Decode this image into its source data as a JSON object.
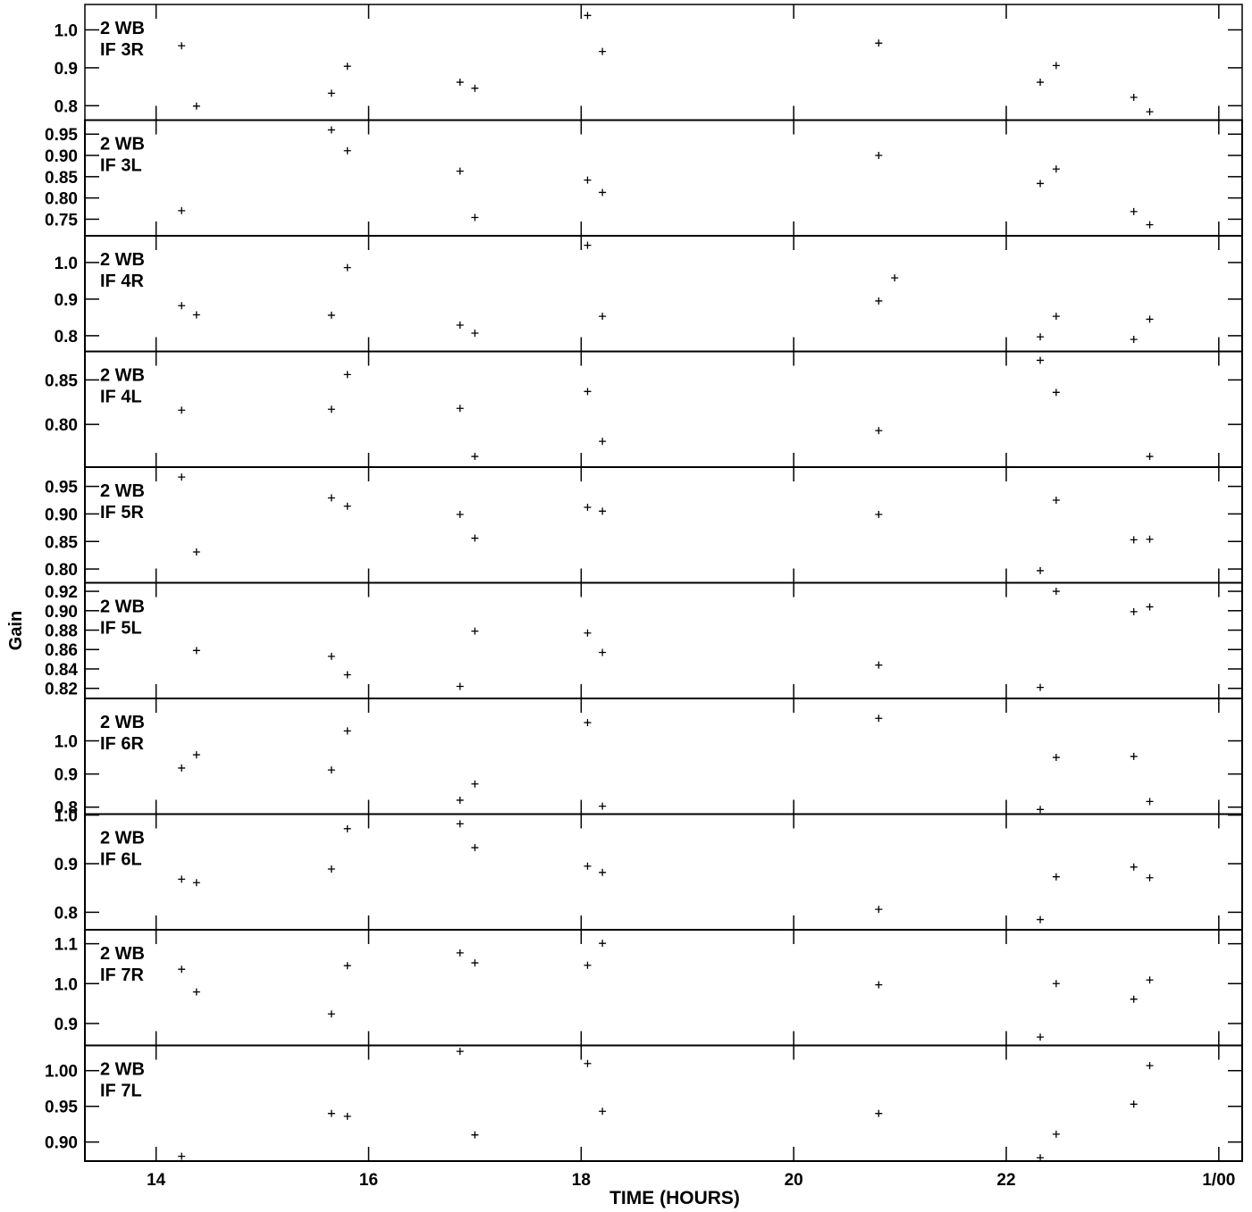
{
  "chart_data": {
    "type": "scatter",
    "ylabel": "Gain",
    "xlabel": "TIME (HOURS)",
    "x_unit": "hours",
    "xlim": [
      13.33,
      24.22
    ],
    "x_ticks": [
      {
        "value": 14,
        "label": "14"
      },
      {
        "value": 16,
        "label": "16"
      },
      {
        "value": 18,
        "label": "18"
      },
      {
        "value": 20,
        "label": "20"
      },
      {
        "value": 22,
        "label": "22"
      },
      {
        "value": 24,
        "label": "1/00"
      }
    ],
    "marker": "+",
    "panels": [
      {
        "label_line1": "2 WB",
        "label_line2": "IF 3R",
        "ylim": [
          0.762,
          1.067
        ],
        "yticks": [
          {
            "v": 0.8,
            "t": "0.8"
          },
          {
            "v": 0.9,
            "t": "0.9"
          },
          {
            "v": 1.0,
            "t": "1.0"
          }
        ],
        "points": [
          [
            14.24,
            0.958
          ],
          [
            14.38,
            0.799
          ],
          [
            15.65,
            0.833
          ],
          [
            15.8,
            0.904
          ],
          [
            16.86,
            0.862
          ],
          [
            17.0,
            0.846
          ],
          [
            18.06,
            1.038
          ],
          [
            18.2,
            0.943
          ],
          [
            20.8,
            0.965
          ],
          [
            22.32,
            0.862
          ],
          [
            22.47,
            0.906
          ],
          [
            23.2,
            0.822
          ],
          [
            23.35,
            0.784
          ]
        ]
      },
      {
        "label_line1": "2 WB",
        "label_line2": "IF 3L",
        "ylim": [
          0.711,
          0.983
        ],
        "yticks": [
          {
            "v": 0.75,
            "t": "0.75"
          },
          {
            "v": 0.8,
            "t": "0.80"
          },
          {
            "v": 0.85,
            "t": "0.85"
          },
          {
            "v": 0.9,
            "t": "0.90"
          },
          {
            "v": 0.95,
            "t": "0.95"
          }
        ],
        "points": [
          [
            14.24,
            0.77
          ],
          [
            15.65,
            0.96
          ],
          [
            15.8,
            0.911
          ],
          [
            16.86,
            0.863
          ],
          [
            17.0,
            0.754
          ],
          [
            18.06,
            0.842
          ],
          [
            18.2,
            0.813
          ],
          [
            20.8,
            0.9
          ],
          [
            22.32,
            0.834
          ],
          [
            22.47,
            0.868
          ],
          [
            23.2,
            0.768
          ],
          [
            23.35,
            0.737
          ]
        ]
      },
      {
        "label_line1": "2 WB",
        "label_line2": "IF 4R",
        "ylim": [
          0.757,
          1.073
        ],
        "yticks": [
          {
            "v": 0.8,
            "t": "0.8"
          },
          {
            "v": 0.9,
            "t": "0.9"
          },
          {
            "v": 1.0,
            "t": "1.0"
          }
        ],
        "points": [
          [
            14.24,
            0.882
          ],
          [
            14.38,
            0.857
          ],
          [
            15.65,
            0.856
          ],
          [
            15.8,
            0.986
          ],
          [
            16.86,
            0.829
          ],
          [
            17.0,
            0.807
          ],
          [
            18.06,
            1.047
          ],
          [
            18.2,
            0.853
          ],
          [
            20.8,
            0.895
          ],
          [
            20.95,
            0.958
          ],
          [
            22.32,
            0.797
          ],
          [
            22.47,
            0.853
          ],
          [
            23.2,
            0.79
          ],
          [
            23.35,
            0.845
          ]
        ]
      },
      {
        "label_line1": "2 WB",
        "label_line2": "IF 4L",
        "ylim": [
          0.752,
          0.882
        ],
        "yticks": [
          {
            "v": 0.8,
            "t": "0.80"
          },
          {
            "v": 0.85,
            "t": "0.85"
          }
        ],
        "points": [
          [
            14.24,
            0.816
          ],
          [
            15.65,
            0.817
          ],
          [
            15.8,
            0.856
          ],
          [
            16.86,
            0.818
          ],
          [
            17.0,
            0.764
          ],
          [
            18.06,
            0.837
          ],
          [
            18.2,
            0.781
          ],
          [
            20.8,
            0.793
          ],
          [
            22.32,
            0.872
          ],
          [
            22.47,
            0.836
          ],
          [
            23.35,
            0.764
          ]
        ]
      },
      {
        "label_line1": "2 WB",
        "label_line2": "IF 5R",
        "ylim": [
          0.775,
          0.985
        ],
        "yticks": [
          {
            "v": 0.8,
            "t": "0.80"
          },
          {
            "v": 0.85,
            "t": "0.85"
          },
          {
            "v": 0.9,
            "t": "0.90"
          },
          {
            "v": 0.95,
            "t": "0.95"
          }
        ],
        "points": [
          [
            14.24,
            0.967
          ],
          [
            14.38,
            0.831
          ],
          [
            15.65,
            0.929
          ],
          [
            15.8,
            0.914
          ],
          [
            16.86,
            0.899
          ],
          [
            17.0,
            0.856
          ],
          [
            18.06,
            0.912
          ],
          [
            18.2,
            0.905
          ],
          [
            20.8,
            0.899
          ],
          [
            22.32,
            0.797
          ],
          [
            22.47,
            0.925
          ],
          [
            23.2,
            0.853
          ],
          [
            23.35,
            0.854
          ]
        ]
      },
      {
        "label_line1": "2 WB",
        "label_line2": "IF 5L",
        "ylim": [
          0.8096,
          0.9288
        ],
        "yticks": [
          {
            "v": 0.82,
            "t": "0.82"
          },
          {
            "v": 0.84,
            "t": "0.84"
          },
          {
            "v": 0.86,
            "t": "0.86"
          },
          {
            "v": 0.88,
            "t": "0.88"
          },
          {
            "v": 0.9,
            "t": "0.90"
          },
          {
            "v": 0.92,
            "t": "0.92"
          }
        ],
        "points": [
          [
            14.38,
            0.859
          ],
          [
            15.65,
            0.853
          ],
          [
            15.8,
            0.834
          ],
          [
            16.86,
            0.822
          ],
          [
            17.0,
            0.879
          ],
          [
            18.06,
            0.877
          ],
          [
            18.2,
            0.857
          ],
          [
            20.8,
            0.844
          ],
          [
            22.32,
            0.821
          ],
          [
            22.47,
            0.92
          ],
          [
            23.2,
            0.899
          ],
          [
            23.35,
            0.904
          ]
        ]
      },
      {
        "label_line1": "2 WB",
        "label_line2": "IF 6R",
        "ylim": [
          0.779,
          1.128
        ],
        "yticks": [
          {
            "v": 0.8,
            "t": "0.8"
          },
          {
            "v": 0.9,
            "t": "0.9"
          },
          {
            "v": 1.0,
            "t": "1.0"
          }
        ],
        "points": [
          [
            14.24,
            0.918
          ],
          [
            14.38,
            0.958
          ],
          [
            15.65,
            0.912
          ],
          [
            15.8,
            1.03
          ],
          [
            16.86,
            0.821
          ],
          [
            17.0,
            0.87
          ],
          [
            18.06,
            1.055
          ],
          [
            18.2,
            0.803
          ],
          [
            20.8,
            1.068
          ],
          [
            22.32,
            0.793
          ],
          [
            22.47,
            0.95
          ],
          [
            23.2,
            0.953
          ],
          [
            23.35,
            0.817
          ]
        ]
      },
      {
        "label_line1": "2 WB",
        "label_line2": "IF 6L",
        "ylim": [
          0.764,
          1.002
        ],
        "yticks": [
          {
            "v": 0.8,
            "t": "0.8"
          },
          {
            "v": 0.9,
            "t": "0.9"
          },
          {
            "v": 1.0,
            "t": "1.0"
          }
        ],
        "points": [
          [
            14.24,
            0.868
          ],
          [
            14.38,
            0.861
          ],
          [
            15.65,
            0.889
          ],
          [
            15.8,
            0.972
          ],
          [
            16.86,
            0.982
          ],
          [
            17.0,
            0.933
          ],
          [
            18.06,
            0.895
          ],
          [
            18.2,
            0.882
          ],
          [
            20.8,
            0.806
          ],
          [
            22.32,
            0.785
          ],
          [
            22.47,
            0.873
          ],
          [
            23.2,
            0.893
          ],
          [
            23.35,
            0.871
          ]
        ]
      },
      {
        "label_line1": "2 WB",
        "label_line2": "IF 7R",
        "ylim": [
          0.845,
          1.135
        ],
        "yticks": [
          {
            "v": 0.9,
            "t": "0.9"
          },
          {
            "v": 1.0,
            "t": "1.0"
          },
          {
            "v": 1.1,
            "t": "1.1"
          }
        ],
        "points": [
          [
            14.24,
            1.036
          ],
          [
            14.38,
            0.979
          ],
          [
            15.65,
            0.924
          ],
          [
            15.8,
            1.045
          ],
          [
            16.86,
            1.077
          ],
          [
            17.0,
            1.052
          ],
          [
            18.06,
            1.046
          ],
          [
            18.2,
            1.101
          ],
          [
            20.8,
            0.997
          ],
          [
            22.32,
            0.866
          ],
          [
            22.47,
            1.0
          ],
          [
            23.2,
            0.961
          ],
          [
            23.35,
            1.009
          ]
        ]
      },
      {
        "label_line1": "2 WB",
        "label_line2": "IF 7L",
        "ylim": [
          0.8733,
          1.0353
        ],
        "yticks": [
          {
            "v": 0.9,
            "t": "0.90"
          },
          {
            "v": 0.95,
            "t": "0.95"
          },
          {
            "v": 1.0,
            "t": "1.00"
          }
        ],
        "points": [
          [
            14.24,
            0.88
          ],
          [
            15.65,
            0.94
          ],
          [
            15.8,
            0.936
          ],
          [
            16.86,
            1.027
          ],
          [
            17.0,
            0.91
          ],
          [
            18.06,
            1.01
          ],
          [
            18.2,
            0.943
          ],
          [
            20.8,
            0.94
          ],
          [
            22.32,
            0.878
          ],
          [
            22.47,
            0.911
          ],
          [
            23.2,
            0.953
          ],
          [
            23.35,
            1.007
          ]
        ]
      }
    ]
  }
}
